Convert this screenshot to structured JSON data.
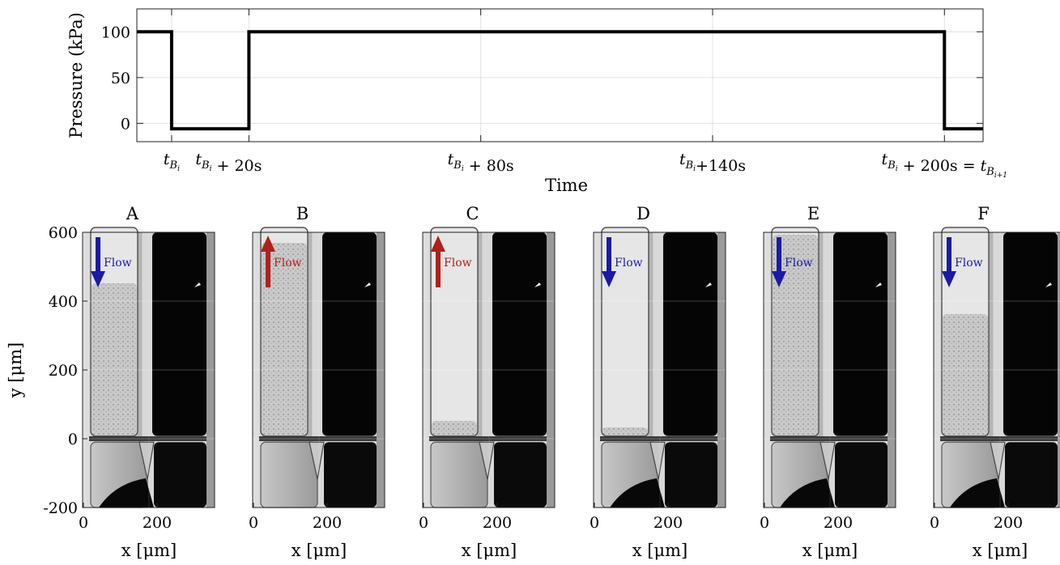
{
  "chart_data": [
    {
      "type": "line",
      "ylabel": "Pressure (kPa)",
      "xlabel": "Time",
      "ylim": [
        -20,
        125
      ],
      "yticks": [
        0,
        50,
        100
      ],
      "grid": true,
      "xtick_labels": [
        "t_{B_i}",
        "t_{B_i} + 20s",
        "t_{B_i} + 80s",
        "t_{B_i}+140s",
        "t_{B_i} + 200s = t_{B_{i+1}}"
      ],
      "xticks_s": [
        0,
        20,
        80,
        140,
        200
      ],
      "xlim_s": [
        -9,
        210
      ],
      "x_unit": "s",
      "series": [
        {
          "x": [
            -9,
            0,
            0,
            20,
            20,
            200,
            200,
            210
          ],
          "y": [
            100,
            100,
            -6,
            -6,
            100,
            100,
            -6,
            -6
          ]
        }
      ]
    },
    {
      "type": "image-panels",
      "panels": [
        {
          "title": "A",
          "flow_label": "Flow",
          "flow_direction": "down",
          "flow_color": "#1a1aa6"
        },
        {
          "title": "B",
          "flow_label": "Flow",
          "flow_direction": "up",
          "flow_color": "#b0201c"
        },
        {
          "title": "C",
          "flow_label": "Flow",
          "flow_direction": "up",
          "flow_color": "#b0201c"
        },
        {
          "title": "D",
          "flow_label": "Flow",
          "flow_direction": "down",
          "flow_color": "#1a1aa6"
        },
        {
          "title": "E",
          "flow_label": "Flow",
          "flow_direction": "down",
          "flow_color": "#1a1aa6"
        },
        {
          "title": "F",
          "flow_label": "Flow",
          "flow_direction": "down",
          "flow_color": "#1a1aa6"
        }
      ],
      "ylabel": "y [μm]",
      "xlabel": "x [μm]",
      "ylim": [
        -200,
        600
      ],
      "yticks": [
        -200,
        0,
        200,
        400,
        600
      ],
      "xticks": [
        0,
        200
      ]
    }
  ]
}
